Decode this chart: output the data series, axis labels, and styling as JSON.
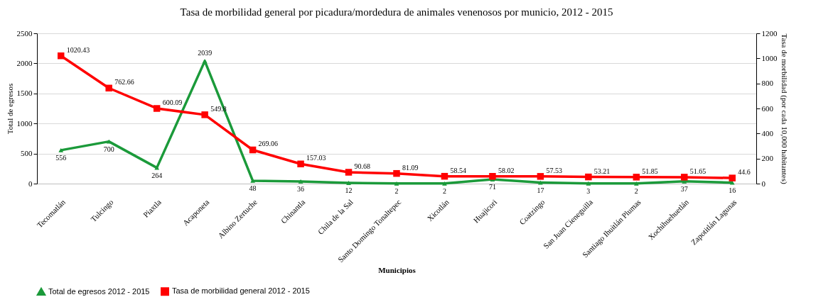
{
  "chart_data": {
    "type": "line",
    "title": "Tasa de morbilidad general por picadura/mordedura de animales venenosos por municio, 2012 - 2015",
    "xlabel": "Municipios",
    "ylabel": "Total de egresos",
    "y2label": "Tasa de morbilidad (por cada 10,000 habitantes)",
    "categories": [
      "Tecomatlán",
      "Tulcingo",
      "Piaxtla",
      "Acaponeta",
      "Albino Zertuche",
      "Chinantla",
      "Chila de la Sal",
      "Santo Domingo Tonaltepec",
      "Xicotlán",
      "Huajicori",
      "Coatzingo",
      "San Juan Cieneguilla",
      "Santiago Ihuitlán Plumas",
      "Xochihuehuetlán",
      "Zapotitlán Lagunas"
    ],
    "series": [
      {
        "name": "Total de egresos 2012 - 2015",
        "color": "#1b9a3a",
        "marker": "triangle",
        "values": [
          556,
          700,
          264,
          2039,
          48,
          36,
          12,
          2,
          2,
          71,
          17,
          3,
          2,
          37,
          16
        ]
      },
      {
        "name": "Tasa de morbilidad general 2012 - 2015",
        "color": "#ff0000",
        "marker": "square",
        "axis": "y2",
        "values": [
          1020.43,
          762.66,
          600.09,
          549.8,
          269.06,
          157.03,
          90.68,
          81.09,
          58.54,
          58.02,
          57.53,
          53.21,
          51.85,
          51.65,
          44.6
        ]
      }
    ],
    "ylim": [
      0,
      2500
    ],
    "yticks": [
      0,
      500,
      1000,
      1500,
      2000,
      2500
    ],
    "y2lim": [
      0,
      1200
    ],
    "y2ticks": [
      0,
      200,
      400,
      600,
      800,
      1000,
      1200
    ],
    "grid": "y",
    "legend": "bottom",
    "data_labels": true,
    "line_style": "solid"
  }
}
